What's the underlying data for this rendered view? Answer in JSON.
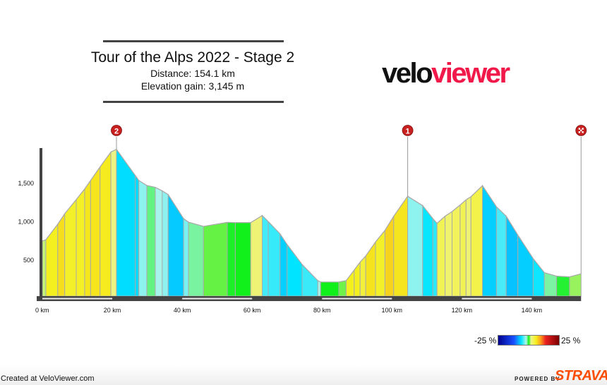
{
  "header": {
    "title": "Tour of the Alps 2022 - Stage 2",
    "distance": "Distance: 154.1 km",
    "elevation_gain": "Elevation gain: 3,145 m",
    "logo_part1": "velo",
    "logo_part2": "viewer"
  },
  "chart_data": {
    "type": "area",
    "title": "Tour of the Alps 2022 - Stage 2",
    "xlabel": "",
    "ylabel": "",
    "x_unit": "km",
    "xlim": [
      0,
      154.1
    ],
    "ylim": [
      0,
      1950
    ],
    "x_ticks": [
      0,
      20,
      40,
      60,
      80,
      100,
      120,
      140
    ],
    "x_tick_labels": [
      "0 km",
      "20 km",
      "40 km",
      "60 km",
      "80 km",
      "100 km",
      "120 km",
      "140 km"
    ],
    "y_ticks": [
      500,
      1000,
      1500
    ],
    "y_tick_labels": [
      "500",
      "1,000",
      "1,500"
    ],
    "grid": false,
    "color_by": "gradient",
    "profile": [
      [
        0,
        750
      ],
      [
        1,
        766
      ],
      [
        4.4,
        968
      ],
      [
        6.4,
        1105
      ],
      [
        9.7,
        1289
      ],
      [
        12.1,
        1427
      ],
      [
        13.8,
        1537
      ],
      [
        16.5,
        1714
      ],
      [
        19.6,
        1907
      ],
      [
        21.2,
        1943
      ],
      [
        26.6,
        1601
      ],
      [
        27.6,
        1537
      ],
      [
        29.9,
        1472
      ],
      [
        32.3,
        1448
      ],
      [
        34.3,
        1402
      ],
      [
        36.0,
        1353
      ],
      [
        40.4,
        1041
      ],
      [
        41.8,
        995
      ],
      [
        46.1,
        940
      ],
      [
        52.9,
        992
      ],
      [
        55.2,
        989
      ],
      [
        59.6,
        989
      ],
      [
        62.9,
        1081
      ],
      [
        64.6,
        1004
      ],
      [
        68.0,
        842
      ],
      [
        70.0,
        705
      ],
      [
        74.3,
        445
      ],
      [
        78.8,
        234
      ],
      [
        79.6,
        216
      ],
      [
        84.8,
        216
      ],
      [
        86.9,
        234
      ],
      [
        89.2,
        372
      ],
      [
        90.9,
        475
      ],
      [
        92.5,
        555
      ],
      [
        95.3,
        738
      ],
      [
        98.0,
        888
      ],
      [
        100.5,
        1072
      ],
      [
        104.5,
        1332
      ],
      [
        108.8,
        1210
      ],
      [
        111.7,
        1041
      ],
      [
        112.9,
        980
      ],
      [
        115.2,
        1072
      ],
      [
        117.2,
        1133
      ],
      [
        119.5,
        1218
      ],
      [
        121.2,
        1286
      ],
      [
        122.6,
        1326
      ],
      [
        125.9,
        1470
      ],
      [
        129.9,
        1195
      ],
      [
        132.7,
        1072
      ],
      [
        136.0,
        828
      ],
      [
        140.4,
        521
      ],
      [
        143.6,
        338
      ],
      [
        147.1,
        292
      ],
      [
        150.8,
        283
      ],
      [
        154.1,
        323
      ]
    ],
    "markers": [
      {
        "km": 21.2,
        "label": "2",
        "icon": "kom-marker"
      },
      {
        "km": 104.5,
        "label": "1",
        "icon": "kom-marker"
      },
      {
        "km": 154.1,
        "label": "",
        "icon": "finish-flag"
      }
    ]
  },
  "legend": {
    "min_label": "-25 %",
    "max_label": "25 %",
    "stops": [
      {
        "grade": -25,
        "color": "#00008b"
      },
      {
        "grade": -12,
        "color": "#1a4fff"
      },
      {
        "grade": -6,
        "color": "#00e5ff"
      },
      {
        "grade": -2,
        "color": "#b3f5ea"
      },
      {
        "grade": 0,
        "color": "#11f01a"
      },
      {
        "grade": 2,
        "color": "#eef48a"
      },
      {
        "grade": 6,
        "color": "#f4f01e"
      },
      {
        "grade": 10,
        "color": "#ff9a1a"
      },
      {
        "grade": 14,
        "color": "#e82020"
      },
      {
        "grade": 25,
        "color": "#7a0000"
      }
    ]
  },
  "footer": {
    "created": "Created at VeloViewer.com",
    "powered_by": "POWERED BY",
    "strava": "STRAVA"
  }
}
